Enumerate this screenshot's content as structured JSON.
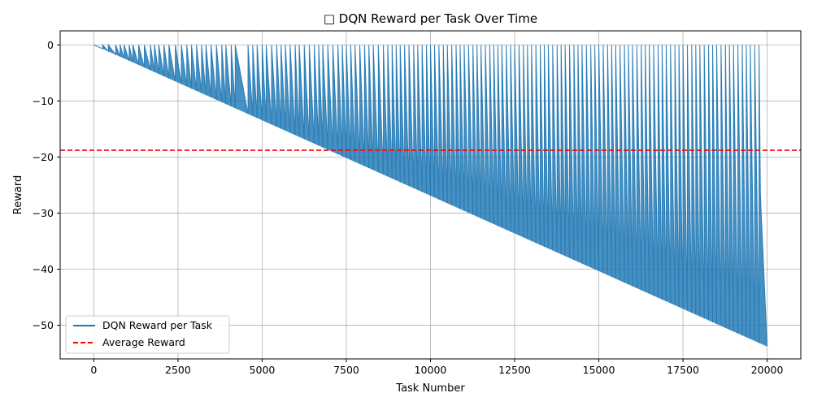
{
  "chart_data": {
    "type": "line",
    "title": "□ DQN Reward per Task Over Time",
    "xlabel": "Task Number",
    "ylabel": "Reward",
    "xlim": [
      -1000,
      21000
    ],
    "ylim": [
      -56,
      2.5
    ],
    "xticks": [
      0,
      2500,
      5000,
      7500,
      10000,
      12500,
      15000,
      17500,
      20000
    ],
    "yticks": [
      0,
      -10,
      -20,
      -30,
      -40,
      -50
    ],
    "grid": true,
    "legend_position": "lower-left",
    "series": [
      {
        "name": "DQN Reward per Task",
        "color": "#1f77b4",
        "style": "solid",
        "pattern": "sawtooth",
        "x_range": [
          0,
          20000
        ],
        "lower_envelope": [
          [
            0,
            0
          ],
          [
            20000,
            -53.8
          ]
        ],
        "upper_envelope": [
          [
            0,
            0
          ],
          [
            20000,
            0
          ]
        ],
        "reset_tasks": [
          260,
          430,
          650,
          780,
          900,
          1050,
          1160,
          1330,
          1500,
          1680,
          1800,
          1930,
          2080,
          2230,
          2420,
          2600,
          2760,
          2900,
          3050,
          3200,
          3330,
          3480,
          3640,
          3800,
          3920,
          4080,
          4200,
          4580,
          4720,
          4850,
          5000,
          5120,
          5280,
          5430,
          5560,
          5690,
          5830,
          5980,
          6100,
          6250,
          6400,
          6550,
          6680,
          6800,
          6950,
          7100,
          7250,
          7380,
          7500,
          7630,
          7760,
          7900,
          8040,
          8170,
          8300,
          8450,
          8600,
          8730,
          8860,
          8980,
          9100,
          9230,
          9360,
          9500,
          9620,
          9750,
          9880,
          10000,
          10120,
          10250,
          10380,
          10500,
          10630,
          10760,
          10880,
          11000,
          11130,
          11260,
          11380,
          11500,
          11630,
          11760,
          11880,
          12000,
          12120,
          12250,
          12380,
          12500,
          12630,
          12760,
          12880,
          13000,
          13130,
          13260,
          13380,
          13500,
          13630,
          13760,
          13880,
          14000,
          14130,
          14260,
          14380,
          14500,
          14630,
          14760,
          14880,
          15000,
          15130,
          15260,
          15380,
          15500,
          15630,
          15760,
          15880,
          16000,
          16130,
          16260,
          16380,
          16500,
          16630,
          16760,
          16880,
          17000,
          17130,
          17260,
          17380,
          17500,
          17630,
          17760,
          17880,
          18000,
          18130,
          18260,
          18380,
          18500,
          18630,
          18760,
          18880,
          19000,
          19130,
          19260,
          19380,
          19500,
          19630,
          19760
        ],
        "end_values": [
          [
            19800,
            -26.7
          ],
          [
            20000,
            -53.8
          ]
        ]
      },
      {
        "name": "Average Reward",
        "color": "#ff0000",
        "style": "dashed",
        "value": -18.8
      }
    ]
  }
}
